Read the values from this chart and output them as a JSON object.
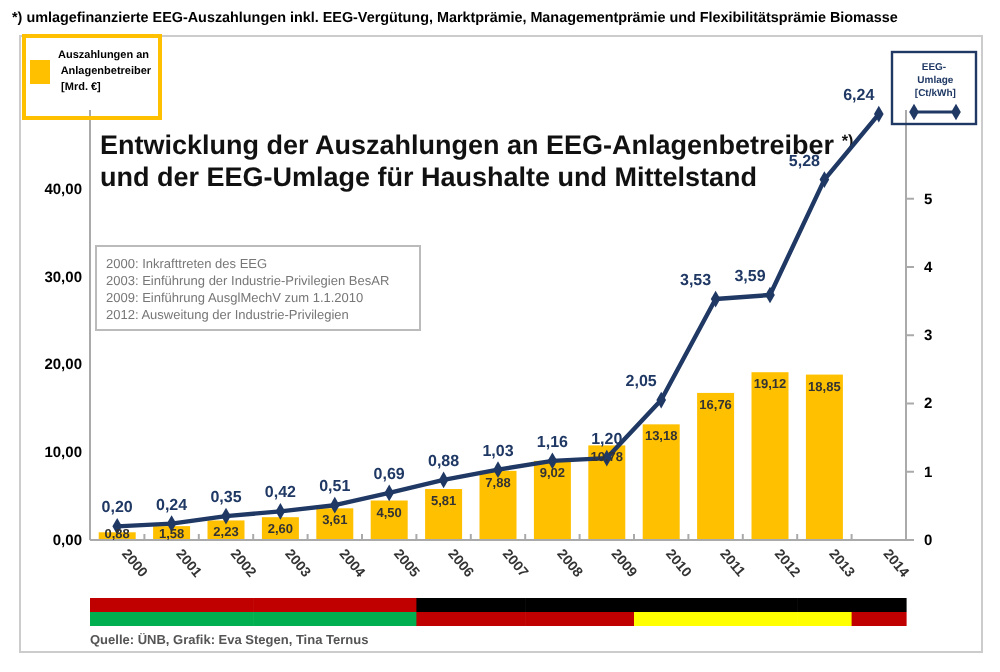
{
  "chart_data": {
    "type": "bar",
    "title": "Entwicklung der Auszahlungen an EEG-Anlagenbetreiber $^{*)}$\nund der EEG-Umlage für Haushalte und Mittelstand",
    "categories": [
      "2000",
      "2001",
      "2002",
      "2003",
      "2004",
      "2005",
      "2006",
      "2007",
      "2008",
      "2009",
      "2010",
      "2011",
      "2012",
      "2013",
      "2014"
    ],
    "series": [
      {
        "name": "Auszahlungen an Anlagenbetreiber [Mrd. €]",
        "color": "#ffc000",
        "values": [
          0.88,
          1.58,
          2.23,
          2.6,
          3.61,
          4.5,
          5.81,
          7.88,
          9.02,
          10.78,
          13.18,
          16.76,
          19.12,
          18.85,
          null
        ],
        "value_labels": [
          "0,88",
          "1,58",
          "2,23",
          "2,60",
          "3,61",
          "4,50",
          "5,81",
          "7,88",
          "9,02",
          "10,78",
          "13,18",
          "16,76",
          "19,12",
          "18,85",
          null
        ]
      },
      {
        "name": "EEG-Umlage [Ct/kWh]",
        "type": "line",
        "axis": "y2",
        "color": "#1f3864",
        "marker": "diamond",
        "values": [
          0.2,
          0.24,
          0.35,
          0.42,
          0.51,
          0.69,
          0.88,
          1.03,
          1.16,
          1.2,
          2.05,
          3.53,
          3.59,
          5.28,
          6.24
        ],
        "value_labels": [
          "0,20",
          "0,24",
          "0,35",
          "0,42",
          "0,51",
          "0,69",
          "0,88",
          "1,03",
          "1,16",
          "1,20",
          "2,05",
          "3,53",
          "3,59",
          "5,28",
          "6,24"
        ]
      }
    ],
    "ylim": [
      0,
      49
    ],
    "yticks": [
      {
        "value": 0,
        "label": "0,00"
      },
      {
        "value": 10,
        "label": "10,00"
      },
      {
        "value": 20,
        "label": "20,00"
      },
      {
        "value": 30,
        "label": "30,00"
      },
      {
        "value": 40,
        "label": "40,00"
      }
    ],
    "y2lim": [
      0,
      6.3
    ],
    "y2ticks": [
      0,
      1,
      2,
      3,
      4,
      5
    ],
    "legend": "top",
    "grid": false,
    "annotations": [
      "*) umlagefinanzierte EEG-Auszahlungen inkl. EEG-Vergütung, Marktprämie, Managementprämie und Flexibilitätsprämie Biomasse",
      "2000: Inkrafttreten des EEG",
      "2003: Einführung der Industrie-Privilegien BesAR",
      "2009: Einführung  AusglMechV zum 1.1.2010",
      "2012: Ausweitung der Industrie-Privilegien",
      "Quelle: ÜNB, Grafik: Eva Stegen, Tina Ternus"
    ]
  }
}
